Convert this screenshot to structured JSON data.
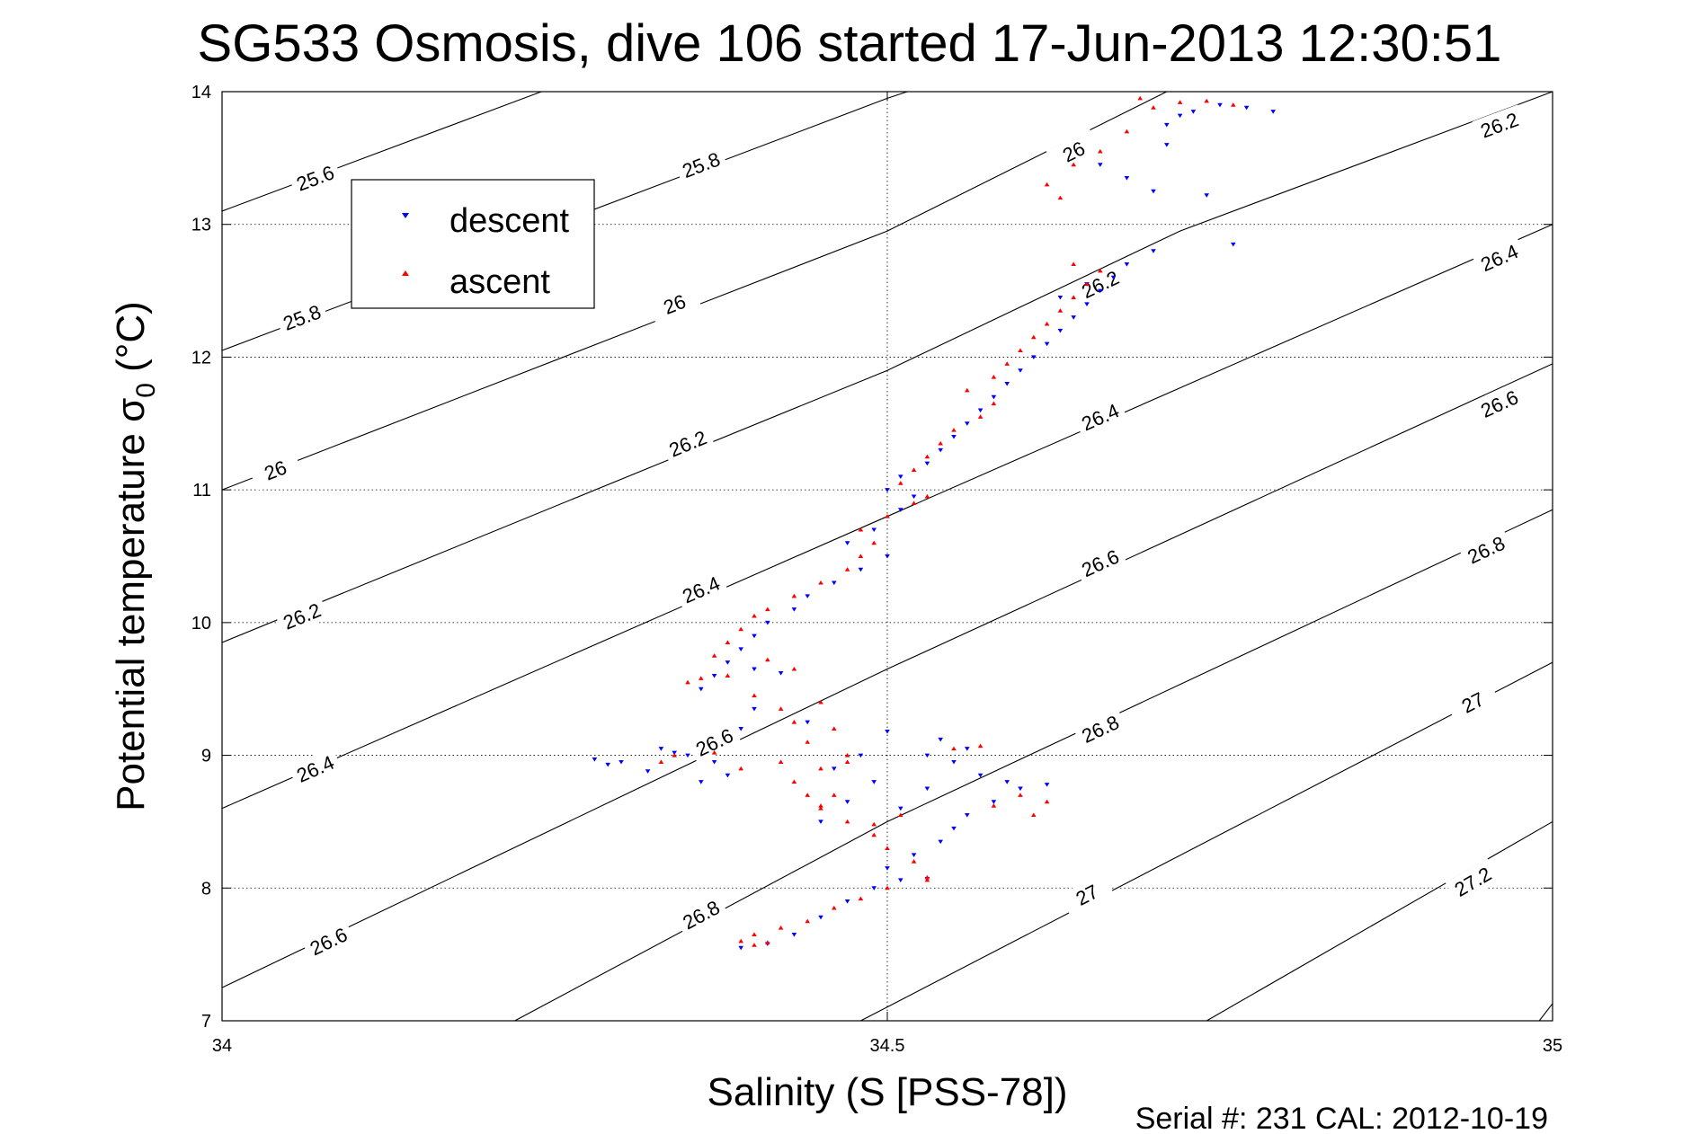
{
  "chart_data": {
    "type": "scatter",
    "title": "SG533 Osmosis, dive 106 started 17-Jun-2013 12:30:51",
    "xlabel": "Salinity (S [PSS-78])",
    "ylabel": "Potential temperature σ",
    "ylabel_sub": "0",
    "ylabel_unit": " (°C)",
    "footer": "Serial #: 231  CAL: 2012-10-19",
    "xlim": [
      34,
      35
    ],
    "ylim": [
      7,
      14
    ],
    "xticks": [
      "34",
      "34.5",
      "35"
    ],
    "yticks": [
      "7",
      "8",
      "9",
      "10",
      "11",
      "12",
      "13",
      "14"
    ],
    "grid": "dotted",
    "legend_position": "top-left",
    "series_colors": {
      "descent": "#0000ff",
      "ascent": "#ff0000"
    },
    "legend": [
      {
        "name": "descent",
        "marker": "down-triangle",
        "color": "#0000ff"
      },
      {
        "name": "ascent",
        "marker": "up-triangle",
        "color": "#ff0000"
      }
    ],
    "contours": [
      {
        "level": "25.6",
        "points": [
          [
            34.0,
            13.1
          ],
          [
            34.24,
            14.0
          ]
        ],
        "labels": [
          [
            34.07,
            13.35
          ]
        ]
      },
      {
        "level": "25.8",
        "points": [
          [
            34.0,
            12.05
          ],
          [
            34.5,
            13.95
          ],
          [
            34.515,
            14.0
          ]
        ],
        "labels": [
          [
            34.36,
            13.45
          ],
          [
            34.06,
            12.3
          ]
        ]
      },
      {
        "level": "26",
        "points": [
          [
            34.0,
            11.0
          ],
          [
            34.5,
            12.95
          ],
          [
            34.71,
            14.0
          ]
        ],
        "labels": [
          [
            34.04,
            11.15
          ],
          [
            34.34,
            12.4
          ],
          [
            34.64,
            13.55
          ]
        ]
      },
      {
        "level": "26.2",
        "points": [
          [
            34.0,
            9.85
          ],
          [
            34.5,
            11.9
          ],
          [
            34.72,
            12.95
          ],
          [
            35.0,
            14.0
          ]
        ],
        "labels": [
          [
            34.06,
            10.05
          ],
          [
            34.35,
            11.35
          ],
          [
            34.66,
            12.55
          ],
          [
            34.96,
            13.75
          ]
        ]
      },
      {
        "level": "26.4",
        "points": [
          [
            34.0,
            8.6
          ],
          [
            34.5,
            10.8
          ],
          [
            35.0,
            13.0
          ]
        ],
        "labels": [
          [
            34.07,
            8.9
          ],
          [
            34.36,
            10.25
          ],
          [
            34.66,
            11.55
          ],
          [
            34.96,
            12.75
          ]
        ]
      },
      {
        "level": "26.6",
        "points": [
          [
            34.0,
            7.25
          ],
          [
            34.5,
            9.65
          ],
          [
            35.0,
            11.95
          ]
        ],
        "labels": [
          [
            34.08,
            7.6
          ],
          [
            34.37,
            9.1
          ],
          [
            34.66,
            10.45
          ],
          [
            34.96,
            11.65
          ]
        ]
      },
      {
        "level": "26.8",
        "points": [
          [
            34.22,
            7.0
          ],
          [
            34.5,
            8.5
          ],
          [
            35.0,
            10.85
          ]
        ],
        "labels": [
          [
            34.36,
            7.8
          ],
          [
            34.66,
            9.2
          ],
          [
            34.95,
            10.55
          ]
        ]
      },
      {
        "level": "27",
        "points": [
          [
            34.48,
            7.0
          ],
          [
            35.0,
            9.7
          ]
        ],
        "labels": [
          [
            34.65,
            7.95
          ],
          [
            34.94,
            9.4
          ]
        ]
      },
      {
        "level": "27.2",
        "points": [
          [
            34.74,
            7.0
          ],
          [
            35.0,
            8.5
          ]
        ],
        "labels": [
          [
            34.94,
            8.05
          ]
        ]
      },
      {
        "level": "",
        "points": [
          [
            34.99,
            7.0
          ],
          [
            35.0,
            7.13
          ]
        ],
        "labels": []
      }
    ],
    "series": [
      {
        "name": "descent",
        "points": [
          [
            34.39,
            7.55
          ],
          [
            34.41,
            7.58
          ],
          [
            34.43,
            7.65
          ],
          [
            34.45,
            7.78
          ],
          [
            34.47,
            7.9
          ],
          [
            34.49,
            8.0
          ],
          [
            34.51,
            8.06
          ],
          [
            34.53,
            8.07
          ],
          [
            34.5,
            8.15
          ],
          [
            34.52,
            8.25
          ],
          [
            34.54,
            8.35
          ],
          [
            34.55,
            8.45
          ],
          [
            34.56,
            8.55
          ],
          [
            34.58,
            8.65
          ],
          [
            34.6,
            8.75
          ],
          [
            34.62,
            8.78
          ],
          [
            34.57,
            8.85
          ],
          [
            34.55,
            8.95
          ],
          [
            34.53,
            9.0
          ],
          [
            34.56,
            9.05
          ],
          [
            34.54,
            9.12
          ],
          [
            34.5,
            9.18
          ],
          [
            34.48,
            9.0
          ],
          [
            34.46,
            8.9
          ],
          [
            34.49,
            8.8
          ],
          [
            34.47,
            8.65
          ],
          [
            34.51,
            8.6
          ],
          [
            34.45,
            8.5
          ],
          [
            34.3,
            8.95
          ],
          [
            34.32,
            8.88
          ],
          [
            34.33,
            9.05
          ],
          [
            34.35,
            9.0
          ],
          [
            34.37,
            8.95
          ],
          [
            34.38,
            8.85
          ],
          [
            34.36,
            8.8
          ],
          [
            34.39,
            9.2
          ],
          [
            34.4,
            9.35
          ],
          [
            34.36,
            9.5
          ],
          [
            34.37,
            9.6
          ],
          [
            34.4,
            9.65
          ],
          [
            34.42,
            9.62
          ],
          [
            34.38,
            9.7
          ],
          [
            34.39,
            9.8
          ],
          [
            34.4,
            9.9
          ],
          [
            34.41,
            10.0
          ],
          [
            34.43,
            10.1
          ],
          [
            34.44,
            10.2
          ],
          [
            34.46,
            10.3
          ],
          [
            34.48,
            10.4
          ],
          [
            34.5,
            10.5
          ],
          [
            34.47,
            10.6
          ],
          [
            34.49,
            10.7
          ],
          [
            34.51,
            10.85
          ],
          [
            34.52,
            10.95
          ],
          [
            34.5,
            11.0
          ],
          [
            34.51,
            11.1
          ],
          [
            34.53,
            11.2
          ],
          [
            34.54,
            11.3
          ],
          [
            34.55,
            11.4
          ],
          [
            34.56,
            11.5
          ],
          [
            34.57,
            11.6
          ],
          [
            34.58,
            11.7
          ],
          [
            34.59,
            11.8
          ],
          [
            34.6,
            11.9
          ],
          [
            34.61,
            12.0
          ],
          [
            34.62,
            12.1
          ],
          [
            34.63,
            12.2
          ],
          [
            34.64,
            12.3
          ],
          [
            34.65,
            12.4
          ],
          [
            34.66,
            12.5
          ],
          [
            34.67,
            12.6
          ],
          [
            34.68,
            12.7
          ],
          [
            34.7,
            12.8
          ],
          [
            34.65,
            12.55
          ],
          [
            34.63,
            12.45
          ],
          [
            34.66,
            13.45
          ],
          [
            34.68,
            13.35
          ],
          [
            34.7,
            13.25
          ],
          [
            34.71,
            13.6
          ],
          [
            34.73,
            13.85
          ],
          [
            34.72,
            13.82
          ],
          [
            34.75,
            13.9
          ],
          [
            34.77,
            13.88
          ],
          [
            34.79,
            13.85
          ],
          [
            34.71,
            13.75
          ],
          [
            34.74,
            13.22
          ],
          [
            34.76,
            12.85
          ],
          [
            34.28,
            8.97
          ],
          [
            34.29,
            8.93
          ],
          [
            34.44,
            9.25
          ],
          [
            34.59,
            8.8
          ],
          [
            34.53,
            8.75
          ],
          [
            34.34,
            9.02
          ]
        ]
      },
      {
        "name": "ascent",
        "points": [
          [
            34.39,
            7.6
          ],
          [
            34.4,
            7.65
          ],
          [
            34.42,
            7.7
          ],
          [
            34.44,
            7.75
          ],
          [
            34.46,
            7.85
          ],
          [
            34.48,
            7.92
          ],
          [
            34.5,
            8.0
          ],
          [
            34.53,
            8.08
          ],
          [
            34.52,
            8.2
          ],
          [
            34.5,
            8.3
          ],
          [
            34.49,
            8.4
          ],
          [
            34.47,
            8.5
          ],
          [
            34.45,
            8.6
          ],
          [
            34.44,
            8.7
          ],
          [
            34.43,
            8.8
          ],
          [
            34.45,
            8.9
          ],
          [
            34.47,
            9.0
          ],
          [
            34.44,
            9.1
          ],
          [
            34.46,
            9.2
          ],
          [
            34.43,
            9.25
          ],
          [
            34.42,
            9.35
          ],
          [
            34.4,
            9.45
          ],
          [
            34.35,
            9.55
          ],
          [
            34.36,
            9.58
          ],
          [
            34.38,
            9.6
          ],
          [
            34.43,
            9.65
          ],
          [
            34.41,
            9.72
          ],
          [
            34.37,
            9.75
          ],
          [
            34.38,
            9.85
          ],
          [
            34.39,
            9.95
          ],
          [
            34.4,
            10.05
          ],
          [
            34.41,
            10.1
          ],
          [
            34.43,
            10.2
          ],
          [
            34.45,
            10.3
          ],
          [
            34.47,
            10.4
          ],
          [
            34.48,
            10.5
          ],
          [
            34.49,
            10.6
          ],
          [
            34.48,
            10.7
          ],
          [
            34.5,
            10.8
          ],
          [
            34.52,
            10.9
          ],
          [
            34.53,
            10.95
          ],
          [
            34.51,
            11.05
          ],
          [
            34.52,
            11.15
          ],
          [
            34.53,
            11.25
          ],
          [
            34.54,
            11.35
          ],
          [
            34.55,
            11.45
          ],
          [
            34.57,
            11.55
          ],
          [
            34.58,
            11.65
          ],
          [
            34.56,
            11.75
          ],
          [
            34.58,
            11.85
          ],
          [
            34.59,
            11.95
          ],
          [
            34.6,
            12.05
          ],
          [
            34.61,
            12.15
          ],
          [
            34.62,
            12.25
          ],
          [
            34.63,
            12.35
          ],
          [
            34.64,
            12.45
          ],
          [
            34.65,
            12.55
          ],
          [
            34.66,
            12.65
          ],
          [
            34.64,
            12.7
          ],
          [
            34.63,
            13.2
          ],
          [
            34.62,
            13.3
          ],
          [
            34.64,
            13.45
          ],
          [
            34.66,
            13.55
          ],
          [
            34.68,
            13.7
          ],
          [
            34.7,
            13.88
          ],
          [
            34.72,
            13.92
          ],
          [
            34.74,
            13.93
          ],
          [
            34.76,
            13.9
          ],
          [
            34.69,
            13.95
          ],
          [
            34.6,
            8.7
          ],
          [
            34.58,
            8.62
          ],
          [
            34.61,
            8.55
          ],
          [
            34.55,
            9.05
          ],
          [
            34.51,
            8.55
          ],
          [
            34.49,
            8.48
          ],
          [
            34.46,
            8.7
          ],
          [
            34.47,
            8.95
          ],
          [
            34.42,
            8.95
          ],
          [
            34.39,
            8.9
          ],
          [
            34.37,
            9.02
          ],
          [
            34.34,
            9.0
          ],
          [
            34.45,
            9.4
          ],
          [
            34.57,
            9.07
          ],
          [
            34.53,
            8.06
          ],
          [
            34.4,
            7.57
          ],
          [
            34.41,
            7.59
          ],
          [
            34.62,
            8.65
          ],
          [
            34.45,
            8.62
          ],
          [
            34.33,
            8.95
          ]
        ]
      }
    ]
  }
}
